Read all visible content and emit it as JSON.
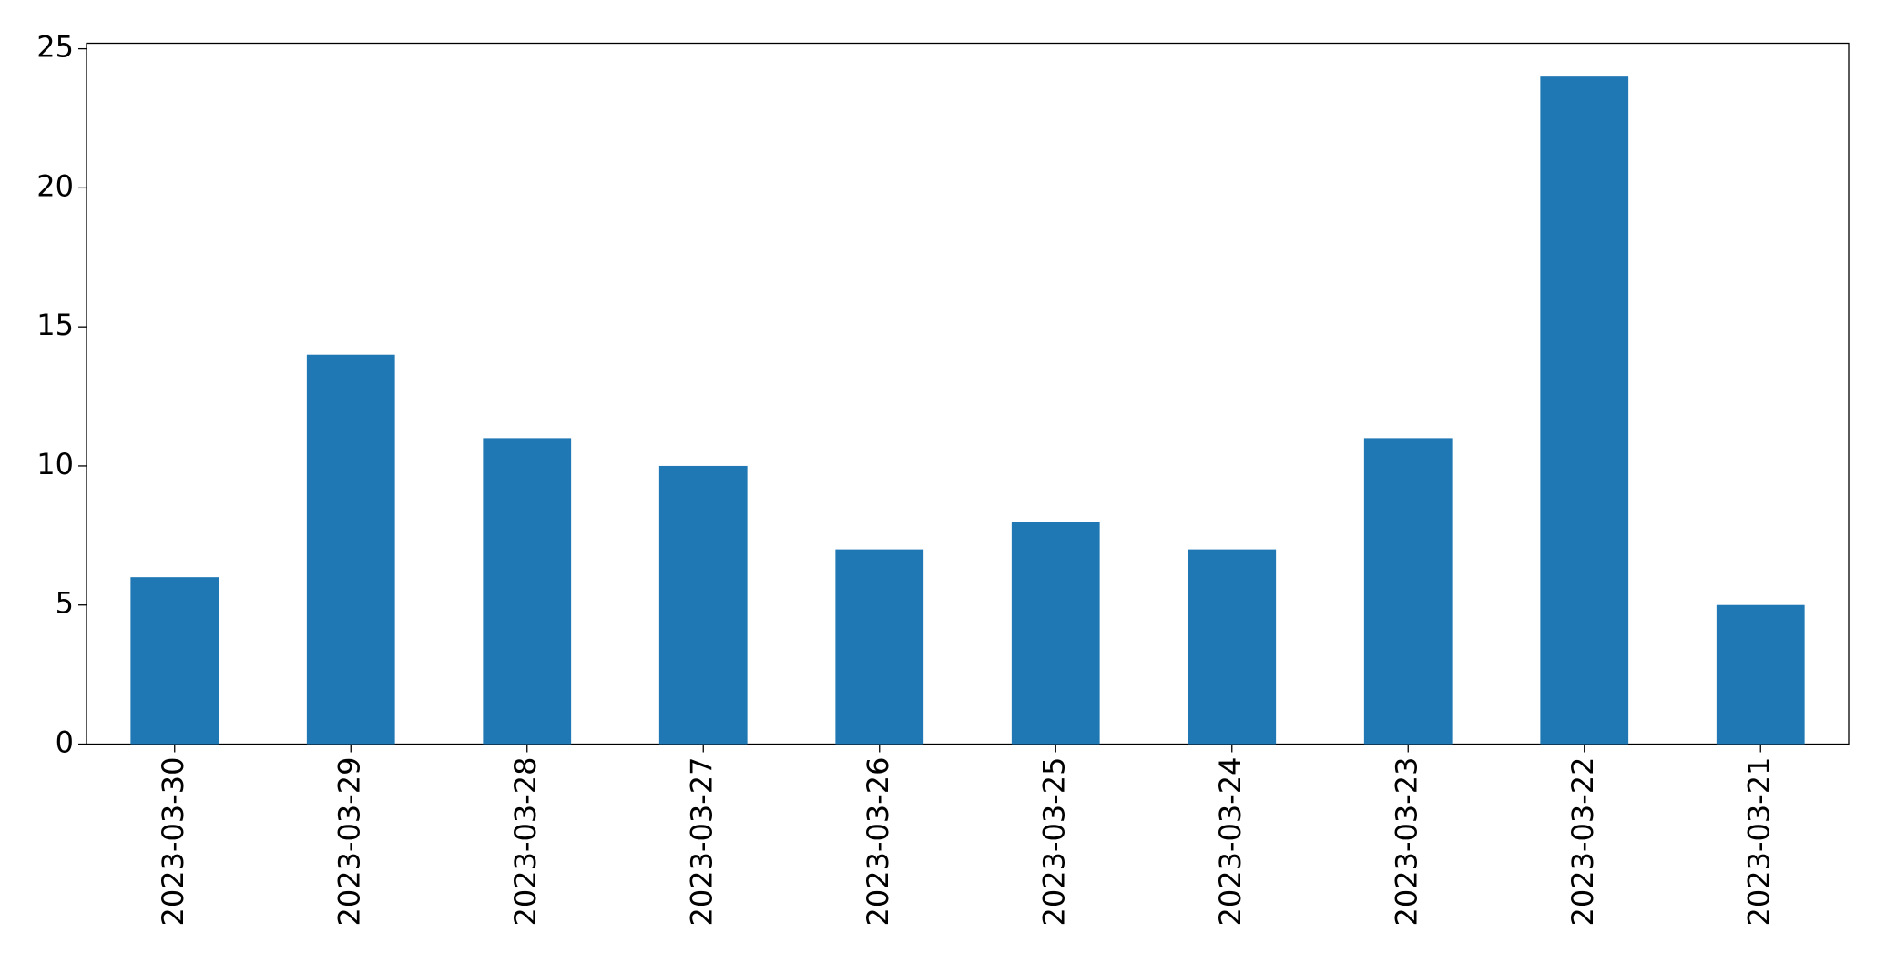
{
  "chart_data": {
    "type": "bar",
    "categories": [
      "2023-03-30",
      "2023-03-29",
      "2023-03-28",
      "2023-03-27",
      "2023-03-26",
      "2023-03-25",
      "2023-03-24",
      "2023-03-23",
      "2023-03-22",
      "2023-03-21"
    ],
    "values": [
      6,
      14,
      11,
      10,
      7,
      8,
      7,
      11,
      24,
      5
    ],
    "color": "#1f77b4",
    "ylim": [
      0,
      25.2
    ],
    "yticks": [
      0,
      5,
      10,
      15,
      20,
      25
    ],
    "grid": false
  }
}
